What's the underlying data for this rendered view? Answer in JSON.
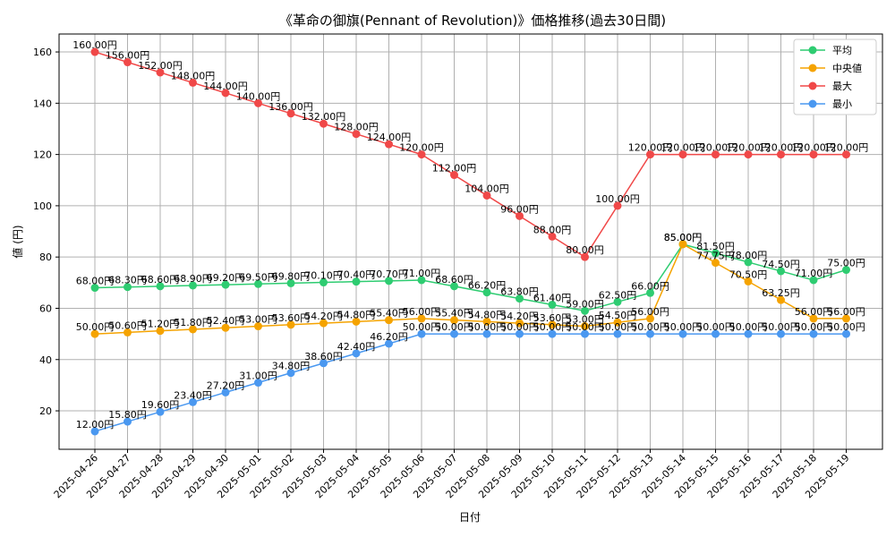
{
  "chart_data": {
    "type": "line",
    "title": "《革命の御旗(Pennant of Revolution)》価格推移(過去30日間)",
    "xlabel": "日付",
    "ylabel": "値 (円)",
    "ylim": [
      5,
      167
    ],
    "yticks": [
      20,
      40,
      60,
      80,
      100,
      120,
      140,
      160
    ],
    "grid": true,
    "legend_position": "top-right",
    "value_suffix": "円",
    "x": [
      "2025-04-26",
      "2025-04-27",
      "2025-04-28",
      "2025-04-29",
      "2025-04-30",
      "2025-05-01",
      "2025-05-02",
      "2025-05-03",
      "2025-05-04",
      "2025-05-05",
      "2025-05-06",
      "2025-05-07",
      "2025-05-08",
      "2025-05-09",
      "2025-05-10",
      "2025-05-11",
      "2025-05-12",
      "2025-05-13",
      "2025-05-14",
      "2025-05-15",
      "2025-05-16",
      "2025-05-17",
      "2025-05-18",
      "2025-05-19"
    ],
    "series": [
      {
        "name": "平均",
        "color": "#2ecc71",
        "values": [
          68.0,
          68.3,
          68.6,
          68.9,
          69.2,
          69.5,
          69.8,
          70.1,
          70.4,
          70.7,
          71.0,
          68.6,
          66.2,
          63.8,
          61.4,
          59.0,
          62.5,
          66.0,
          85.0,
          81.5,
          78.0,
          74.5,
          71.0,
          75.0
        ]
      },
      {
        "name": "中央値",
        "color": "#f5a300",
        "values": [
          50.0,
          50.6,
          51.2,
          51.8,
          52.4,
          53.0,
          53.6,
          54.2,
          54.8,
          55.4,
          56.0,
          55.4,
          54.8,
          54.2,
          53.6,
          53.0,
          54.5,
          56.0,
          85.0,
          77.75,
          70.5,
          63.25,
          56.0,
          56.0
        ]
      },
      {
        "name": "最大",
        "color": "#f04848",
        "values": [
          160.0,
          156.0,
          152.0,
          148.0,
          144.0,
          140.0,
          136.0,
          132.0,
          128.0,
          124.0,
          120.0,
          112.0,
          104.0,
          96.0,
          88.0,
          80.0,
          100.0,
          120.0,
          120.0,
          120.0,
          120.0,
          120.0,
          120.0,
          120.0
        ]
      },
      {
        "name": "最小",
        "color": "#4a98f0",
        "values": [
          12.0,
          15.8,
          19.6,
          23.4,
          27.2,
          31.0,
          34.8,
          38.6,
          42.4,
          46.2,
          50.0,
          50.0,
          50.0,
          50.0,
          50.0,
          50.0,
          50.0,
          50.0,
          50.0,
          50.0,
          50.0,
          50.0,
          50.0,
          50.0
        ]
      }
    ]
  }
}
